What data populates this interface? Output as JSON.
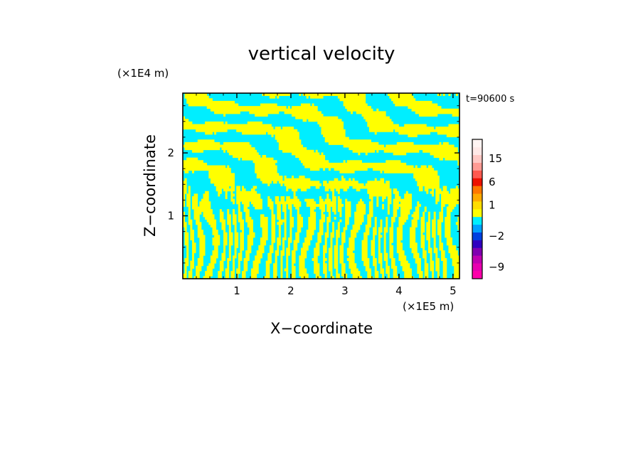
{
  "chart_data": {
    "type": "heatmap",
    "title": "vertical velocity",
    "xlabel": "X−coordinate",
    "ylabel": "Z−coordinate",
    "x_unit": "(×1E5 m)",
    "y_unit": "(×1E4 m)",
    "time_label": "t=90600 s",
    "xlim": [
      0,
      5.12
    ],
    "ylim": [
      0,
      2.95
    ],
    "x_ticks": [
      {
        "value": 1,
        "label": "1"
      },
      {
        "value": 2,
        "label": "2"
      },
      {
        "value": 3,
        "label": "3"
      },
      {
        "value": 4,
        "label": "4"
      },
      {
        "value": 5,
        "label": "5"
      }
    ],
    "y_ticks": [
      {
        "value": 1,
        "label": "1"
      },
      {
        "value": 2,
        "label": "2"
      }
    ],
    "field_colors": {
      "updraft": "#ffff00",
      "downdraft": "#00eeff"
    },
    "colorbar": {
      "levels": [
        {
          "value": -12,
          "color": "#ff00aa"
        },
        {
          "value": -9,
          "color": "#e800b0"
        },
        {
          "value": -6,
          "color": "#c000b0"
        },
        {
          "value": -4,
          "color": "#8000b0"
        },
        {
          "value": -3,
          "color": "#3000c0"
        },
        {
          "value": -2,
          "color": "#0040e0"
        },
        {
          "value": -1,
          "color": "#00a0ff"
        },
        {
          "value": 0,
          "color": "#00eeff"
        },
        {
          "value": 0.5,
          "color": "#ffff00"
        },
        {
          "value": 1,
          "color": "#ffdd00"
        },
        {
          "value": 2,
          "color": "#ffaa00"
        },
        {
          "value": 3,
          "color": "#ff7700"
        },
        {
          "value": 6,
          "color": "#ee1100"
        },
        {
          "value": 9,
          "color": "#ff5a50"
        },
        {
          "value": 12,
          "color": "#ff9b94"
        },
        {
          "value": 15,
          "color": "#ffc8c4"
        },
        {
          "value": 18,
          "color": "#ffe8e6"
        },
        {
          "value": 21,
          "color": "#fff4f2"
        }
      ],
      "tick_labels": [
        {
          "value": 15,
          "label": "15"
        },
        {
          "value": 6,
          "label": "6"
        },
        {
          "value": 1,
          "label": "1"
        },
        {
          "value": -2,
          "label": "−2"
        },
        {
          "value": -9,
          "label": "−9"
        }
      ]
    }
  }
}
